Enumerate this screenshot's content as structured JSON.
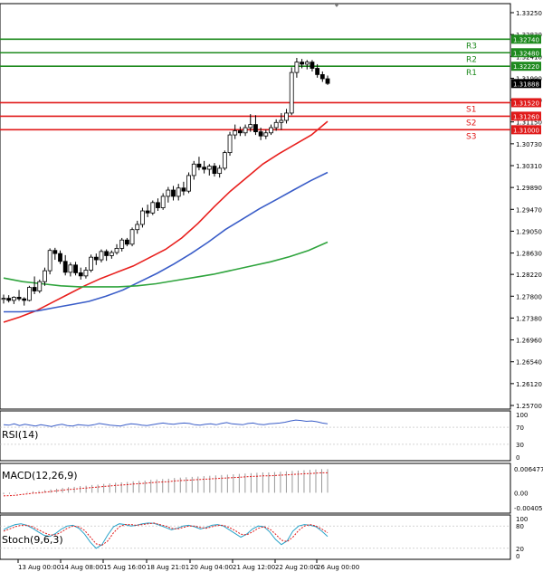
{
  "chart_data": [
    {
      "type": "candlestick",
      "panel": "price",
      "x_labels": [
        "13 Aug 00:00",
        "14 Aug 08:00",
        "15 Aug 16:00",
        "18 Aug 21:01",
        "20 Aug 04:00",
        "21 Aug 12:00",
        "22 Aug 20:00",
        "26 Aug 00:00"
      ],
      "y_ticks": [
        "1.33250",
        "1.32830",
        "1.32410",
        "1.31990",
        "1.31570",
        "1.31150",
        "1.30730",
        "1.30310",
        "1.29890",
        "1.29470",
        "1.29050",
        "1.28630",
        "1.28220",
        "1.27800",
        "1.27380",
        "1.26960",
        "1.26540",
        "1.26120",
        "1.25700"
      ],
      "ylim": [
        1.257,
        1.3325
      ],
      "current_price": "1.31888",
      "grid": false,
      "candles": [
        [
          1.2774,
          1.2783,
          1.2766,
          1.2776
        ],
        [
          1.2776,
          1.2782,
          1.2768,
          1.2772
        ],
        [
          1.2772,
          1.278,
          1.2765,
          1.2778
        ],
        [
          1.2778,
          1.2792,
          1.2771,
          1.2775
        ],
        [
          1.2775,
          1.2778,
          1.2762,
          1.2772
        ],
        [
          1.2772,
          1.28,
          1.277,
          1.2797
        ],
        [
          1.2797,
          1.2818,
          1.2784,
          1.279
        ],
        [
          1.279,
          1.2812,
          1.2786,
          1.2808
        ],
        [
          1.2808,
          1.2835,
          1.28,
          1.2829
        ],
        [
          1.2829,
          1.2872,
          1.2822,
          1.2868
        ],
        [
          1.2868,
          1.2873,
          1.285,
          1.2862
        ],
        [
          1.2862,
          1.2868,
          1.2842,
          1.2847
        ],
        [
          1.2847,
          1.2859,
          1.282,
          1.2826
        ],
        [
          1.2826,
          1.2845,
          1.2818,
          1.284
        ],
        [
          1.284,
          1.2846,
          1.282,
          1.2825
        ],
        [
          1.2825,
          1.2835,
          1.2812,
          1.2819
        ],
        [
          1.2819,
          1.2836,
          1.2814,
          1.283
        ],
        [
          1.283,
          1.286,
          1.2826,
          1.2855
        ],
        [
          1.2855,
          1.2862,
          1.284,
          1.285
        ],
        [
          1.285,
          1.287,
          1.2845,
          1.2866
        ],
        [
          1.2866,
          1.287,
          1.2848,
          1.2858
        ],
        [
          1.2858,
          1.2868,
          1.2852,
          1.2864
        ],
        [
          1.2864,
          1.288,
          1.286,
          1.2872
        ],
        [
          1.2872,
          1.2892,
          1.2866,
          1.2888
        ],
        [
          1.2888,
          1.2892,
          1.2876,
          1.288
        ],
        [
          1.288,
          1.2912,
          1.2876,
          1.2908
        ],
        [
          1.2908,
          1.2925,
          1.29,
          1.2918
        ],
        [
          1.2918,
          1.295,
          1.2912,
          1.2944
        ],
        [
          1.2944,
          1.2956,
          1.2932,
          1.294
        ],
        [
          1.294,
          1.2964,
          1.2936,
          1.296
        ],
        [
          1.296,
          1.2968,
          1.2944,
          1.295
        ],
        [
          1.295,
          1.2978,
          1.2946,
          1.2972
        ],
        [
          1.2972,
          1.299,
          1.296,
          1.2984
        ],
        [
          1.2984,
          1.2992,
          1.2964,
          1.2972
        ],
        [
          1.2972,
          1.2996,
          1.2964,
          1.2988
        ],
        [
          1.2988,
          1.3,
          1.2974,
          1.2982
        ],
        [
          1.2982,
          1.3018,
          1.2978,
          1.3012
        ],
        [
          1.3012,
          1.304,
          1.3004,
          1.3034
        ],
        [
          1.3034,
          1.3048,
          1.3022,
          1.3028
        ],
        [
          1.3028,
          1.304,
          1.3016,
          1.3024
        ],
        [
          1.3024,
          1.3034,
          1.3012,
          1.303
        ],
        [
          1.303,
          1.3036,
          1.301,
          1.3016
        ],
        [
          1.3016,
          1.3032,
          1.3008,
          1.3026
        ],
        [
          1.3026,
          1.306,
          1.3022,
          1.3056
        ],
        [
          1.3056,
          1.3096,
          1.305,
          1.309
        ],
        [
          1.309,
          1.311,
          1.3082,
          1.3098
        ],
        [
          1.3098,
          1.3106,
          1.3088,
          1.3094
        ],
        [
          1.3094,
          1.311,
          1.3088,
          1.3104
        ],
        [
          1.3104,
          1.313,
          1.3096,
          1.311
        ],
        [
          1.311,
          1.3128,
          1.309,
          1.3096
        ],
        [
          1.3096,
          1.3104,
          1.308,
          1.3088
        ],
        [
          1.3088,
          1.31,
          1.3082,
          1.3094
        ],
        [
          1.3094,
          1.311,
          1.309,
          1.3104
        ],
        [
          1.3104,
          1.312,
          1.3098,
          1.3114
        ],
        [
          1.3114,
          1.3132,
          1.31,
          1.3118
        ],
        [
          1.3118,
          1.314,
          1.3112,
          1.3132
        ],
        [
          1.3132,
          1.322,
          1.3128,
          1.321
        ],
        [
          1.321,
          1.3238,
          1.32,
          1.323
        ],
        [
          1.323,
          1.3236,
          1.3218,
          1.3226
        ],
        [
          1.3226,
          1.3234,
          1.3216,
          1.323
        ],
        [
          1.323,
          1.3234,
          1.3212,
          1.3218
        ],
        [
          1.3218,
          1.3226,
          1.32,
          1.3206
        ],
        [
          1.3206,
          1.3212,
          1.3192,
          1.3198
        ],
        [
          1.3198,
          1.3204,
          1.3186,
          1.3189
        ]
      ],
      "moving_averages": [
        {
          "color": "#e8201e",
          "values": [
            1.273,
            1.274,
            1.2752,
            1.2768,
            1.2784,
            1.28,
            1.2814,
            1.2826,
            1.2838,
            1.2854,
            1.287,
            1.2892,
            1.292,
            1.2952,
            1.2982,
            1.3008,
            1.3034,
            1.3054,
            1.3072,
            1.309,
            1.3116
          ]
        },
        {
          "color": "#3a5dc8",
          "values": [
            1.275,
            1.275,
            1.2752,
            1.2758,
            1.2764,
            1.277,
            1.278,
            1.2792,
            1.2808,
            1.2824,
            1.2842,
            1.2862,
            1.2884,
            1.2908,
            1.2928,
            1.2948,
            1.2966,
            1.2984,
            1.3002,
            1.3018
          ]
        },
        {
          "color": "#2fa43d",
          "values": [
            1.2815,
            1.2808,
            1.2804,
            1.28,
            1.2798,
            1.2798,
            1.2798,
            1.28,
            1.2804,
            1.281,
            1.2816,
            1.2822,
            1.283,
            1.2838,
            1.2846,
            1.2856,
            1.2868,
            1.2884
          ]
        }
      ],
      "levels": [
        {
          "name": "R3",
          "value": "1.32740",
          "color": "#1e8a1e"
        },
        {
          "name": "R2",
          "value": "1.32480",
          "color": "#1e8a1e"
        },
        {
          "name": "R1",
          "value": "1.32220",
          "color": "#1e8a1e"
        },
        {
          "name": "S1",
          "value": "1.31520",
          "color": "#e01a1a"
        },
        {
          "name": "S2",
          "value": "1.31260",
          "color": "#e01a1a"
        },
        {
          "name": "S3",
          "value": "1.31000",
          "color": "#e01a1a"
        }
      ]
    },
    {
      "type": "line",
      "panel": "rsi",
      "title": "RSI(14)",
      "ylim": [
        0,
        100
      ],
      "y_ticks": [
        "100",
        "70",
        "30",
        "0"
      ],
      "color": "#3a5dc8",
      "values": [
        76,
        75,
        78,
        74,
        77,
        75,
        73,
        76,
        74,
        72,
        75,
        77,
        74,
        73,
        76,
        75,
        74,
        76,
        79,
        77,
        75,
        74,
        73,
        76,
        78,
        77,
        75,
        74,
        76,
        78,
        80,
        78,
        77,
        79,
        80,
        79,
        76,
        75,
        77,
        78,
        76,
        79,
        81,
        78,
        77,
        76,
        79,
        80,
        77,
        76,
        78,
        79,
        80,
        82,
        85,
        87,
        86,
        84,
        85,
        83,
        80,
        78
      ]
    },
    {
      "type": "bar",
      "panel": "macd",
      "title": "MACD(12,26,9)",
      "ylim": [
        -0.004058,
        0.006477
      ],
      "y_ticks": [
        "0.006477",
        "0.00",
        "-0.004058"
      ],
      "values": [
        -0.0004,
        -0.0003,
        -0.0002,
        0.0,
        0.0002,
        0.0004,
        0.0005,
        0.0007,
        0.0009,
        0.0011,
        0.0013,
        0.0015,
        0.0016,
        0.0018,
        0.0019,
        0.0021,
        0.0022,
        0.0024,
        0.0025,
        0.0027,
        0.0028,
        0.0029,
        0.0031,
        0.0032,
        0.0033,
        0.0035,
        0.0036,
        0.0037,
        0.0038,
        0.004,
        0.0041,
        0.0042,
        0.0043,
        0.0044,
        0.0045,
        0.0046,
        0.0047,
        0.0048,
        0.0049,
        0.005,
        0.0051,
        0.0052,
        0.0053,
        0.0054,
        0.0055,
        0.0055,
        0.0056,
        0.0057,
        0.0058,
        0.0059,
        0.006,
        0.0061,
        0.0062,
        0.0063,
        0.0064,
        0.0064
      ],
      "signal_color": "#e01a1a"
    },
    {
      "type": "line",
      "panel": "stoch",
      "title": "Stoch(9,6,3)",
      "ylim": [
        0,
        100
      ],
      "y_ticks": [
        "100",
        "80",
        "20",
        "0"
      ],
      "series": [
        {
          "color": "#29a3c9",
          "values": [
            70,
            78,
            84,
            86,
            82,
            74,
            64,
            55,
            52,
            60,
            72,
            80,
            82,
            74,
            58,
            36,
            20,
            30,
            56,
            78,
            86,
            84,
            80,
            82,
            86,
            88,
            87,
            82,
            76,
            70,
            74,
            80,
            82,
            78,
            72,
            76,
            82,
            84,
            80,
            70,
            60,
            50,
            58,
            72,
            80,
            78,
            64,
            44,
            30,
            40,
            66,
            80,
            84,
            82,
            78,
            66,
            52
          ]
        },
        {
          "color": "#e01a1a",
          "values": [
            66,
            72,
            78,
            82,
            82,
            78,
            70,
            62,
            56,
            56,
            64,
            74,
            80,
            78,
            68,
            50,
            32,
            28,
            40,
            62,
            78,
            84,
            84,
            82,
            84,
            86,
            88,
            84,
            80,
            74,
            72,
            76,
            80,
            80,
            76,
            74,
            78,
            82,
            82,
            76,
            68,
            58,
            56,
            64,
            74,
            78,
            72,
            58,
            42,
            38,
            50,
            68,
            80,
            84,
            80,
            72,
            62
          ]
        }
      ]
    }
  ]
}
